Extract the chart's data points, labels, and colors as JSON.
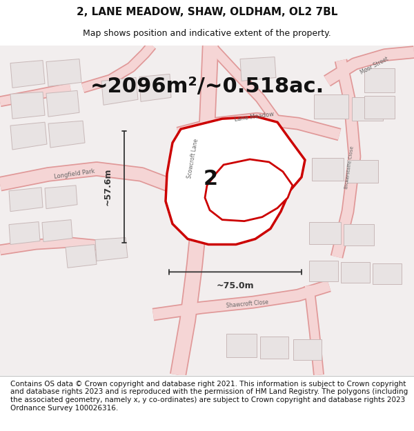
{
  "title": "2, LANE MEADOW, SHAW, OLDHAM, OL2 7BL",
  "subtitle": "Map shows position and indicative extent of the property.",
  "area_text": "~2096m²/~0.518ac.",
  "label_2": "2",
  "dim_horizontal": "~75.0m",
  "dim_vertical": "~57.6m",
  "footer": "Contains OS data © Crown copyright and database right 2021. This information is subject to Crown copyright and database rights 2023 and is reproduced with the permission of HM Land Registry. The polygons (including the associated geometry, namely x, y co-ordinates) are subject to Crown copyright and database rights 2023 Ordnance Survey 100026316.",
  "bg_color": "#ffffff",
  "map_bg": "#f2eeee",
  "road_color": "#f5d5d5",
  "road_edge": "#e09898",
  "building_color": "#e8e3e3",
  "building_stroke": "#c8b8b8",
  "highlight_color": "#cc0000",
  "dim_color": "#333333",
  "title_fontsize": 11,
  "subtitle_fontsize": 9,
  "area_fontsize": 22,
  "label_fontsize": 22,
  "footer_fontsize": 7.5,
  "road_label_color": "#666666",
  "road_label_size": 6
}
